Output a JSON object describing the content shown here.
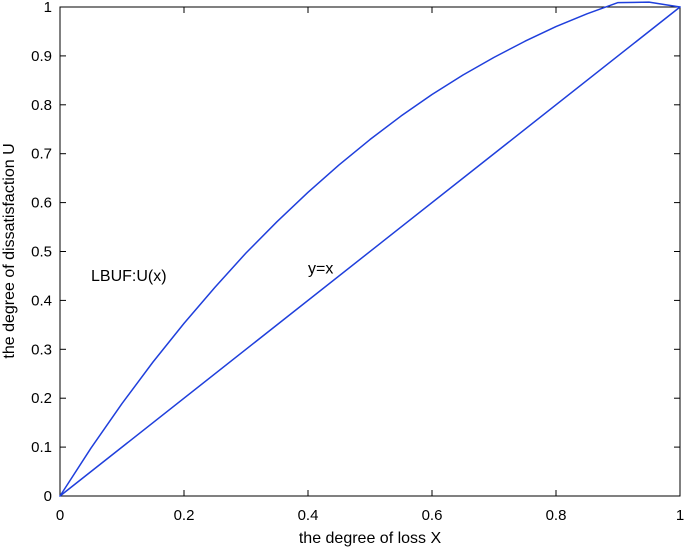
{
  "chart_data": {
    "type": "line",
    "title": "",
    "xlabel": "the degree of loss X",
    "ylabel": "the degree of dissatisfaction U",
    "xlim": [
      0,
      1
    ],
    "ylim": [
      0,
      1
    ],
    "x_ticks": [
      "0",
      "0.2",
      "0.4",
      "0.6",
      "0.8",
      "1"
    ],
    "y_ticks": [
      "0",
      "0.1",
      "0.2",
      "0.3",
      "0.4",
      "0.5",
      "0.6",
      "0.7",
      "0.8",
      "0.9",
      "1"
    ],
    "grid": false,
    "line_color": "#1f3fdc",
    "series": [
      {
        "name": "LBUF:U(x)",
        "x": [
          0,
          0.05,
          0.1,
          0.15,
          0.2,
          0.25,
          0.3,
          0.35,
          0.4,
          0.45,
          0.5,
          0.55,
          0.6,
          0.65,
          0.7,
          0.75,
          0.8,
          0.85,
          0.9,
          0.95,
          1
        ],
        "y": [
          0,
          0.098,
          0.189,
          0.274,
          0.353,
          0.427,
          0.497,
          0.561,
          0.621,
          0.677,
          0.729,
          0.777,
          0.821,
          0.861,
          0.897,
          0.93,
          0.96,
          0.986,
          1.009,
          1.01,
          1.0
        ]
      },
      {
        "name": "y=x",
        "x": [
          0,
          1
        ],
        "y": [
          0,
          1
        ]
      }
    ],
    "annotations": [
      {
        "text": "LBUF:U(x)",
        "x": 0.05,
        "y": 0.44
      },
      {
        "text": "y=x",
        "x": 0.4,
        "y": 0.455
      }
    ]
  }
}
